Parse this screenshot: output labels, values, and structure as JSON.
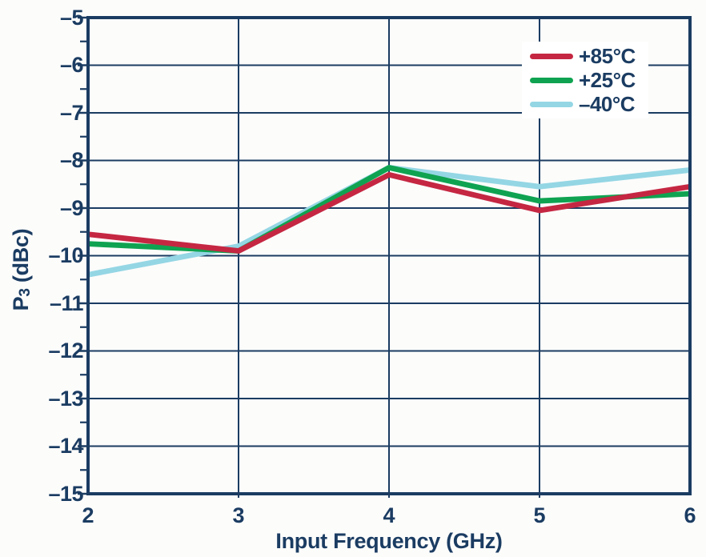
{
  "chart_data": {
    "type": "line",
    "title": "",
    "xlabel": "Input Frequency (GHz)",
    "ylabel": "P3 (dBc)",
    "ylabel_parts": {
      "base": "P",
      "sub": "3",
      "unit": " (dBc)"
    },
    "x": [
      2,
      3,
      4,
      5,
      6
    ],
    "xtick_labels": [
      "2",
      "3",
      "4",
      "5",
      "6"
    ],
    "xlim": [
      2,
      6
    ],
    "ylim": [
      -15,
      -5
    ],
    "yticks": [
      -5,
      -6,
      -7,
      -8,
      -9,
      -10,
      -11,
      -12,
      -13,
      -14,
      -15
    ],
    "ytick_labels": [
      "–5",
      "–6",
      "–7",
      "–8",
      "–9",
      "–10",
      "–11",
      "–12",
      "–13",
      "–14",
      "–15"
    ],
    "y_minor_ticks": [
      -5.5,
      -6.5,
      -7.5,
      -8.5,
      -9.5,
      -10.5,
      -11.5,
      -12.5,
      -13.5,
      -14.5
    ],
    "grid": true,
    "legend_position": "top-right",
    "series": [
      {
        "name": "+85°C",
        "color": "#c52742",
        "values": [
          -9.55,
          -9.9,
          -8.3,
          -9.05,
          -8.55
        ]
      },
      {
        "name": "+25°C",
        "color": "#0fa351",
        "values": [
          -9.75,
          -9.9,
          -8.15,
          -8.85,
          -8.7
        ]
      },
      {
        "name": "–40°C",
        "color": "#94d6e4",
        "values": [
          -10.4,
          -9.8,
          -8.15,
          -8.55,
          -8.2
        ]
      }
    ]
  },
  "colors": {
    "axis": "#1b3c62",
    "text": "#1b3c62",
    "background": "#fcfcfb",
    "legend_bg": "#ffffff"
  }
}
